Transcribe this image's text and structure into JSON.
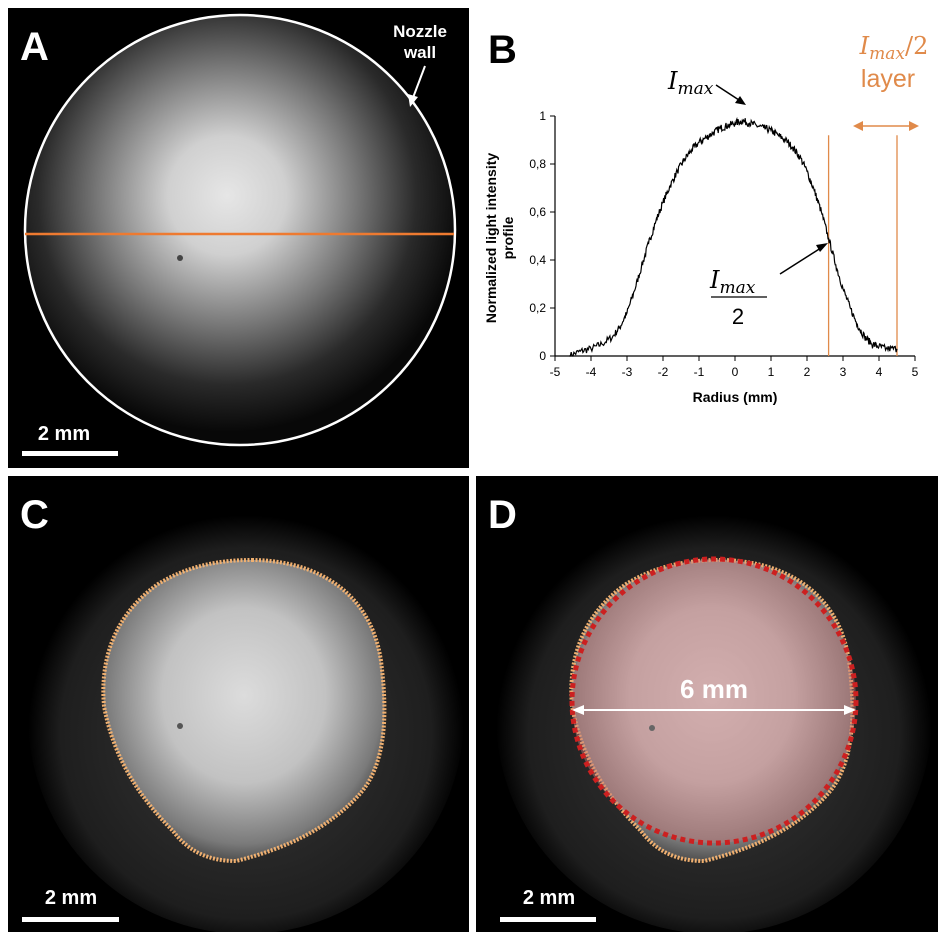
{
  "panels": {
    "a": {
      "letter": "A",
      "annotation_line1": "Nozzle",
      "annotation_line2": "wall",
      "scalebar": "2 mm"
    },
    "b": {
      "letter": "B"
    },
    "c": {
      "letter": "C",
      "scalebar": "2 mm"
    },
    "d": {
      "letter": "D",
      "scalebar": "2 mm",
      "measurement": "6 mm"
    }
  },
  "colors": {
    "panel_bg": "#000000",
    "profile_line": "#ee7a30",
    "contour": "#f0b070",
    "fit_circle": "#cc2020",
    "highlight_fill": "#c87878",
    "annotation": "#e08a4a"
  },
  "chart_data": {
    "type": "line",
    "title": "",
    "xlabel": "Radius (mm)",
    "ylabel_line1": "Normalized light intensity",
    "ylabel_line2": "profile",
    "xlim": [
      -5,
      5
    ],
    "ylim": [
      0,
      1
    ],
    "x_ticks": [
      "-5",
      "-4",
      "-3",
      "-2",
      "-1",
      "0",
      "1",
      "2",
      "3",
      "4",
      "5"
    ],
    "y_ticks": [
      "0",
      "0,2",
      "0,4",
      "0,6",
      "0,8",
      "1"
    ],
    "grid": false,
    "legend": "none",
    "series": [
      {
        "x": [
          -4.6,
          -4.3,
          -4.0,
          -3.7,
          -3.4,
          -3.2,
          -3.0,
          -2.8,
          -2.6,
          -2.4,
          -2.2,
          -2.0,
          -1.8,
          -1.6,
          -1.4,
          -1.2,
          -1.0,
          -0.8,
          -0.6,
          -0.4,
          -0.2,
          0.0,
          0.2,
          0.4,
          0.6,
          0.8,
          1.0,
          1.2,
          1.4,
          1.6,
          1.8,
          2.0,
          2.2,
          2.4,
          2.6,
          2.8,
          3.0,
          3.2,
          3.4,
          3.6,
          3.8,
          4.0,
          4.2,
          4.5
        ],
        "y": [
          0.0,
          0.02,
          0.03,
          0.05,
          0.08,
          0.12,
          0.18,
          0.27,
          0.37,
          0.47,
          0.56,
          0.64,
          0.71,
          0.77,
          0.82,
          0.86,
          0.89,
          0.91,
          0.93,
          0.95,
          0.96,
          0.97,
          0.98,
          0.97,
          0.96,
          0.95,
          0.94,
          0.92,
          0.9,
          0.87,
          0.83,
          0.77,
          0.69,
          0.6,
          0.49,
          0.38,
          0.28,
          0.2,
          0.13,
          0.08,
          0.05,
          0.04,
          0.03,
          0.03
        ]
      }
    ],
    "guides": {
      "x": [
        2.6,
        4.5
      ]
    },
    "annotations": {
      "imax_main": "I",
      "imax_sub": "max",
      "half_num_main": "I",
      "half_num_sub": "max",
      "half_den": "2",
      "layer_main": "I",
      "layer_sub": "max",
      "layer_tail": "/2",
      "layer_word": "layer"
    }
  }
}
